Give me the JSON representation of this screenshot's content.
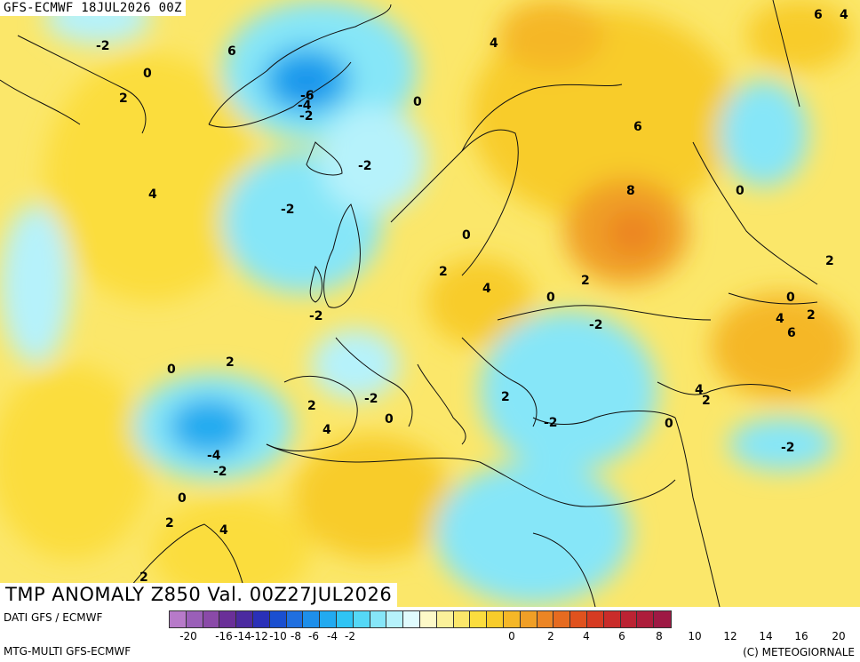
{
  "header": {
    "title": "GFS-ECMWF 18JUL2026 00Z"
  },
  "footer": {
    "title": "TMP ANOMALY Z850 Val. 00Z27JUL2026"
  },
  "source": {
    "line1": "DATI GFS / ECMWF",
    "line2": "MTG-MULTI GFS-ECMWF",
    "copyright": "(C) METEOGIORNALE"
  },
  "legend": {
    "colors": [
      "#b77ac9",
      "#9a5fb8",
      "#8a4aa8",
      "#6a2f98",
      "#4b2aa0",
      "#2a30b8",
      "#1a4fd0",
      "#1f6fe0",
      "#1e8fea",
      "#22aaf0",
      "#2fc4f4",
      "#55d8f6",
      "#86e6f8",
      "#b6f2fb",
      "#e0fbfd",
      "#fdf9c8",
      "#fbf19a",
      "#fbe76a",
      "#fbdd3e",
      "#f8cc2a",
      "#f5b727",
      "#f09f26",
      "#ec8524",
      "#e66b20",
      "#e0521e",
      "#d63b22",
      "#c92c2a",
      "#bb2333",
      "#ad1d3b",
      "#9e1944"
    ],
    "ticks": [
      "-20",
      "-16",
      "-14",
      "-12",
      "-10",
      "-8",
      "-6",
      "-4",
      "-2",
      "0",
      "2",
      "4",
      "6",
      "8",
      "10",
      "12",
      "14",
      "16",
      "20"
    ]
  },
  "contour_labels": [
    {
      "t": "-2"
    },
    {
      "t": "0"
    },
    {
      "t": "2"
    },
    {
      "t": "6"
    },
    {
      "t": "-6"
    },
    {
      "t": "-4"
    },
    {
      "t": "-2"
    },
    {
      "t": "0"
    },
    {
      "t": "4"
    },
    {
      "t": "6"
    },
    {
      "t": "4"
    },
    {
      "t": "6"
    },
    {
      "t": "-2"
    },
    {
      "t": "4"
    },
    {
      "t": "8"
    },
    {
      "t": "0"
    },
    {
      "t": "-2"
    },
    {
      "t": "0"
    },
    {
      "t": "2"
    },
    {
      "t": "4"
    },
    {
      "t": "0"
    },
    {
      "t": "2"
    },
    {
      "t": "-2"
    },
    {
      "t": "-2"
    },
    {
      "t": "0"
    },
    {
      "t": "2"
    },
    {
      "t": "4"
    },
    {
      "t": "2"
    },
    {
      "t": "6"
    },
    {
      "t": "2"
    },
    {
      "t": "-2"
    },
    {
      "t": "2"
    },
    {
      "t": "4"
    },
    {
      "t": "2"
    },
    {
      "t": "0"
    },
    {
      "t": "4"
    },
    {
      "t": "-2"
    },
    {
      "t": "0"
    },
    {
      "t": "-4"
    },
    {
      "t": "-2"
    },
    {
      "t": "-2"
    },
    {
      "t": "0"
    },
    {
      "t": "2"
    },
    {
      "t": "0"
    },
    {
      "t": "2"
    },
    {
      "t": "4"
    },
    {
      "t": "2"
    }
  ]
}
